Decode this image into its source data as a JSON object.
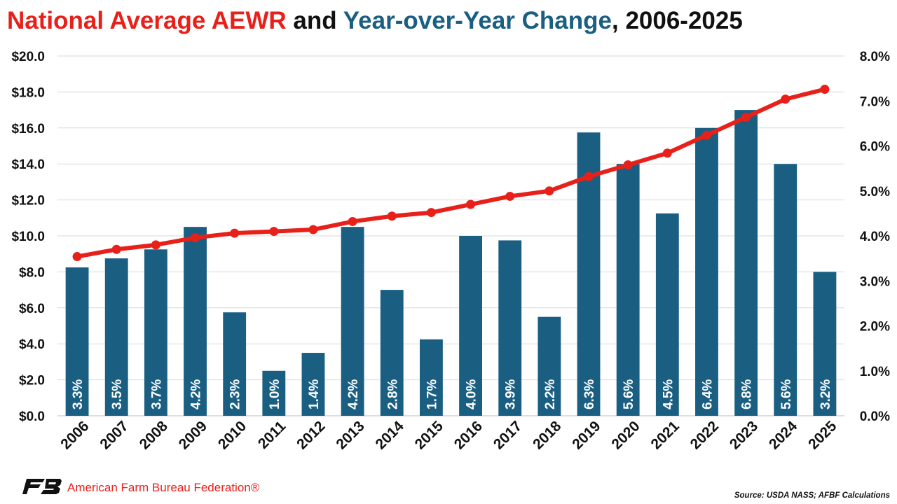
{
  "title": {
    "part1": "National Average AEWR",
    "part2": " and ",
    "part3": "Year-over-Year Change",
    "part4": ", 2006-2025"
  },
  "colors": {
    "title_red": "#e8201a",
    "title_blue": "#1a5f82",
    "bar": "#1a5f82",
    "line": "#e8201a"
  },
  "chart_data": {
    "type": "bar+line",
    "categories": [
      "2006",
      "2007",
      "2008",
      "2009",
      "2010",
      "2011",
      "2012",
      "2013",
      "2014",
      "2015",
      "2016",
      "2017",
      "2018",
      "2019",
      "2020",
      "2021",
      "2022",
      "2023",
      "2024",
      "2025"
    ],
    "y_left": {
      "ticks": [
        "$0.0",
        "$2.0",
        "$4.0",
        "$6.0",
        "$8.0",
        "$10.0",
        "$12.0",
        "$14.0",
        "$16.0",
        "$18.0",
        "$20.0"
      ],
      "ylim": [
        0,
        20
      ]
    },
    "y_right": {
      "ticks": [
        "0.0%",
        "1.0%",
        "2.0%",
        "3.0%",
        "4.0%",
        "5.0%",
        "6.0%",
        "7.0%",
        "8.0%"
      ],
      "ylim": [
        0,
        8
      ]
    },
    "grid": "horizontal",
    "series": [
      {
        "type": "bar",
        "axis": "right",
        "values": [
          3.3,
          3.5,
          3.7,
          4.2,
          2.3,
          1.0,
          1.4,
          4.2,
          2.8,
          1.7,
          4.0,
          3.9,
          2.2,
          6.3,
          5.6,
          4.5,
          6.4,
          6.8,
          5.6,
          3.2
        ],
        "labels": [
          "3.3%",
          "3.5%",
          "3.7%",
          "4.2%",
          "2.3%",
          "1.0%",
          "1.4%",
          "4.2%",
          "2.8%",
          "1.7%",
          "4.0%",
          "3.9%",
          "2.2%",
          "6.3%",
          "5.6%",
          "4.5%",
          "6.4%",
          "6.8%",
          "5.6%",
          "3.2%"
        ]
      },
      {
        "type": "line",
        "axis": "left",
        "values": [
          8.85,
          9.25,
          9.5,
          9.9,
          10.15,
          10.25,
          10.35,
          10.8,
          11.1,
          11.3,
          11.75,
          12.2,
          12.5,
          13.3,
          13.95,
          14.6,
          15.6,
          16.6,
          17.6,
          18.15
        ]
      }
    ]
  },
  "footer": {
    "org": "American Farm Bureau Federation®",
    "source": "Source: USDA NASS; AFBF Calculations"
  }
}
